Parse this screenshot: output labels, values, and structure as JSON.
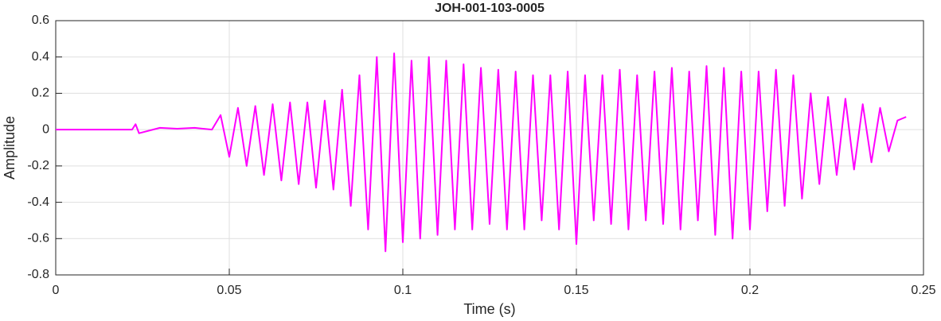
{
  "chart_data": {
    "type": "line",
    "title": "JOH-001-103-0005",
    "xlabel": "Time (s)",
    "ylabel": "Amplitude",
    "xlim": [
      0,
      0.25
    ],
    "ylim": [
      -0.8,
      0.6
    ],
    "xticks": [
      0,
      0.05,
      0.1,
      0.15,
      0.2,
      0.25
    ],
    "yticks": [
      -0.8,
      -0.6,
      -0.4,
      -0.2,
      0,
      0.2,
      0.4,
      0.6
    ],
    "grid": true,
    "series": [
      {
        "color": "#ff00ff",
        "x": [
          0,
          0.022,
          0.023,
          0.024,
          0.03,
          0.035,
          0.04,
          0.045,
          0.0475,
          0.05,
          0.0525,
          0.055,
          0.0575,
          0.06,
          0.0625,
          0.065,
          0.0675,
          0.07,
          0.0725,
          0.075,
          0.0775,
          0.08,
          0.0825,
          0.085,
          0.0875,
          0.09,
          0.0925,
          0.095,
          0.0975,
          0.1,
          0.1025,
          0.105,
          0.1075,
          0.11,
          0.1125,
          0.115,
          0.1175,
          0.12,
          0.1225,
          0.125,
          0.1275,
          0.13,
          0.1325,
          0.135,
          0.1375,
          0.14,
          0.1425,
          0.145,
          0.1475,
          0.15,
          0.1525,
          0.155,
          0.1575,
          0.16,
          0.1625,
          0.165,
          0.1675,
          0.17,
          0.1725,
          0.175,
          0.1775,
          0.18,
          0.1825,
          0.185,
          0.1875,
          0.19,
          0.1925,
          0.195,
          0.1975,
          0.2,
          0.2025,
          0.205,
          0.2075,
          0.21,
          0.2125,
          0.215,
          0.2175,
          0.22,
          0.2225,
          0.225,
          0.2275,
          0.23,
          0.2325,
          0.235,
          0.2375,
          0.24,
          0.2425,
          0.245
        ],
        "values": [
          0,
          0,
          0.03,
          -0.02,
          0.01,
          0.005,
          0.01,
          0,
          0.08,
          -0.15,
          0.12,
          -0.2,
          0.13,
          -0.25,
          0.14,
          -0.28,
          0.15,
          -0.3,
          0.15,
          -0.32,
          0.16,
          -0.33,
          0.22,
          -0.42,
          0.3,
          -0.55,
          0.4,
          -0.67,
          0.42,
          -0.62,
          0.38,
          -0.6,
          0.4,
          -0.58,
          0.38,
          -0.55,
          0.36,
          -0.55,
          0.34,
          -0.52,
          0.33,
          -0.55,
          0.32,
          -0.55,
          0.3,
          -0.5,
          0.3,
          -0.55,
          0.32,
          -0.63,
          0.3,
          -0.5,
          0.3,
          -0.52,
          0.33,
          -0.55,
          0.3,
          -0.5,
          0.32,
          -0.52,
          0.34,
          -0.55,
          0.32,
          -0.5,
          0.35,
          -0.58,
          0.34,
          -0.6,
          0.32,
          -0.55,
          0.32,
          -0.45,
          0.33,
          -0.42,
          0.3,
          -0.38,
          0.2,
          -0.3,
          0.18,
          -0.25,
          0.17,
          -0.22,
          0.14,
          -0.18,
          0.12,
          -0.12,
          0.05,
          0.07
        ]
      }
    ]
  }
}
